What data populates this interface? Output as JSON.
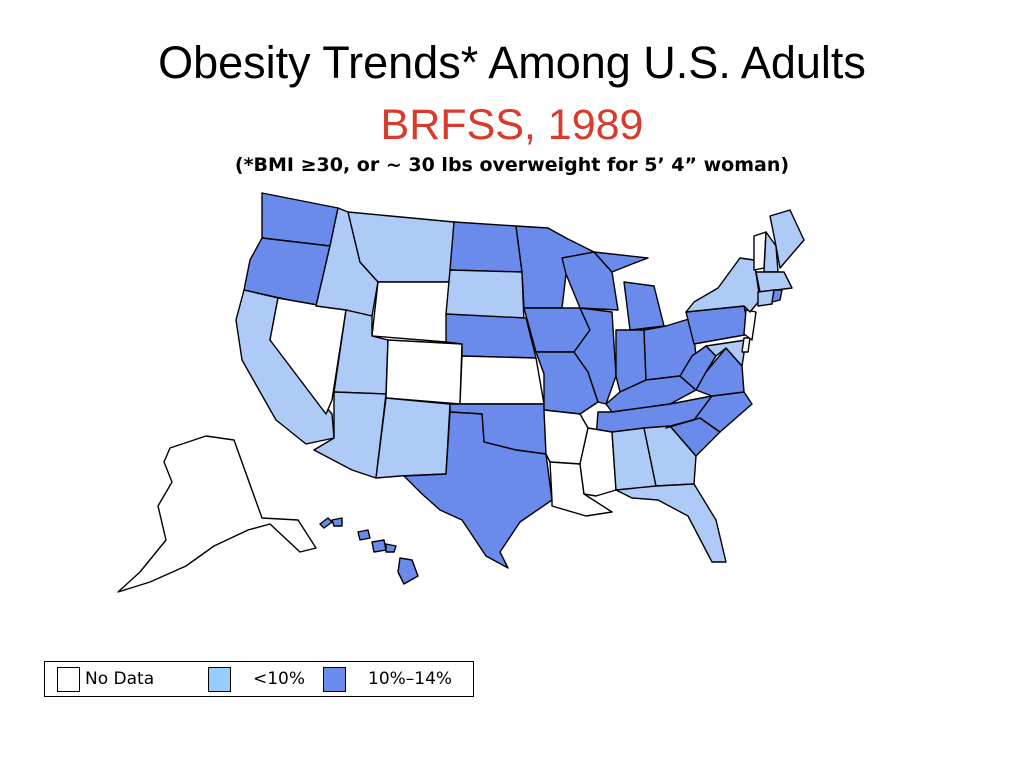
{
  "title": "Obesity Trends* Among U.S. Adults",
  "subtitle": "BRFSS, 1989",
  "note": "(*BMI ≥30, or ~ 30 lbs overweight for 5’ 4” woman)",
  "colors": {
    "no_data": "#ffffff",
    "lt10": "#aecbf7",
    "10to14": "#6a8beb",
    "subtitle": "#d93a2b"
  },
  "legend": [
    {
      "label": "No Data",
      "color": "#ffffff"
    },
    {
      "label": "<10%",
      "color": "#99ccff"
    },
    {
      "label": "10%–14%",
      "color": "#6a8beb"
    }
  ],
  "states": {
    "WA": "10to14",
    "OR": "10to14",
    "CA": "lt10",
    "NV": "no_data",
    "ID": "lt10",
    "MT": "lt10",
    "WY": "no_data",
    "UT": "lt10",
    "CO": "no_data",
    "AZ": "lt10",
    "NM": "lt10",
    "ND": "10to14",
    "SD": "lt10",
    "NE": "10to14",
    "KS": "no_data",
    "OK": "10to14",
    "TX": "10to14",
    "MN": "10to14",
    "IA": "10to14",
    "MO": "10to14",
    "AR": "no_data",
    "LA": "no_data",
    "WI": "10to14",
    "IL": "10to14",
    "MS": "no_data",
    "MI": "10to14",
    "IN": "10to14",
    "KY": "10to14",
    "TN": "10to14",
    "AL": "lt10",
    "OH": "10to14",
    "WV": "10to14",
    "GA": "lt10",
    "FL": "lt10",
    "SC": "10to14",
    "NC": "10to14",
    "VA": "10to14",
    "PA": "10to14",
    "NY": "lt10",
    "VT": "no_data",
    "NH": "lt10",
    "ME": "lt10",
    "MA": "lt10",
    "CT": "lt10",
    "RI": "10to14",
    "NJ": "no_data",
    "DE": "no_data",
    "MD": "lt10",
    "AK": "no_data",
    "HI": "10to14"
  }
}
